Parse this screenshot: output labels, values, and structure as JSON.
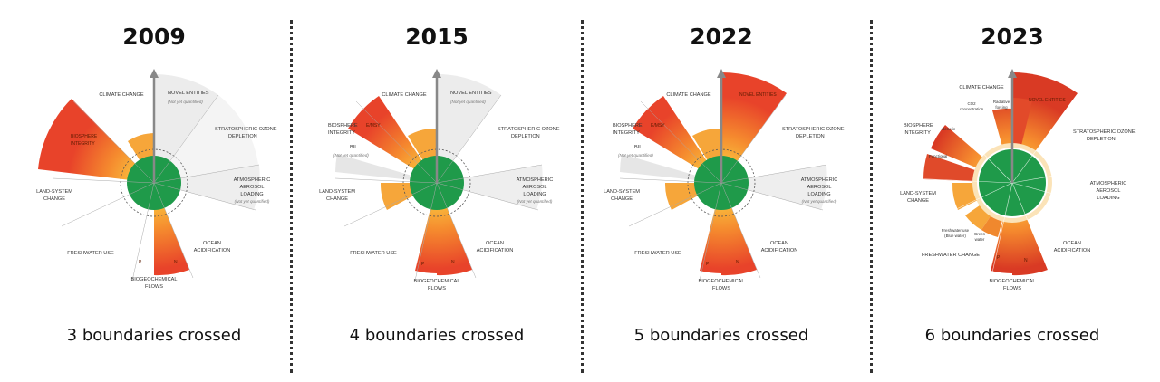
{
  "panels": [
    {
      "year": "2009",
      "caption": "3 boundaries crossed",
      "labels": {
        "climate": "CLIMATE CHANGE",
        "novel": "NOVEL ENTITIES",
        "novel_sub": "(Not yet quantified)",
        "ozone_1": "STRATOSPHERIC OZONE",
        "ozone_2": "DEPLETION",
        "aerosol_1": "ATMOSPHERIC",
        "aerosol_2": "AEROSOL",
        "aerosol_3": "LOADING",
        "aerosol_sub": "(Not yet quantified)",
        "ocean_1": "OCEAN",
        "ocean_2": "ACIDIFICATION",
        "bio_1": "BIOGEOCHEMICAL",
        "bio_2": "FLOWS",
        "p": "P",
        "n": "N",
        "fresh": "FRESHWATER USE",
        "land_1": "LAND-SYSTEM",
        "land_2": "CHANGE",
        "biosphere_1": "BIOSPHERE",
        "biosphere_2": "INTEGRITY"
      }
    },
    {
      "year": "2015",
      "caption": "4 boundaries crossed",
      "labels": {
        "climate": "CLIMATE CHANGE",
        "novel": "NOVEL ENTITIES",
        "novel_sub": "(Not yet quantified)",
        "ozone_1": "STRATOSPHERIC OZONE",
        "ozone_2": "DEPLETION",
        "aerosol_1": "ATMOSPHERIC",
        "aerosol_2": "AEROSOL",
        "aerosol_3": "LOADING",
        "aerosol_sub": "(Not yet quantified)",
        "ocean_1": "OCEAN",
        "ocean_2": "ACIDIFICATION",
        "bio_1": "BIOGEOCHEMICAL",
        "bio_2": "FLOWS",
        "p": "P",
        "n": "N",
        "fresh": "FRESHWATER USE",
        "land_1": "LAND-SYSTEM",
        "land_2": "CHANGE",
        "biosphere_1": "BIOSPHERE",
        "biosphere_2": "INTEGRITY",
        "emsy": "E/MSY",
        "bii": "BII",
        "bii_sub": "(Not yet quantified)"
      }
    },
    {
      "year": "2022",
      "caption": "5 boundaries crossed",
      "labels": {
        "climate": "CLIMATE CHANGE",
        "novel": "NOVEL ENTITIES",
        "ozone_1": "STRATOSPHERIC OZONE",
        "ozone_2": "DEPLETION",
        "aerosol_1": "ATMOSPHERIC",
        "aerosol_2": "AEROSOL",
        "aerosol_3": "LOADING",
        "aerosol_sub": "(Not yet quantified)",
        "ocean_1": "OCEAN",
        "ocean_2": "ACIDIFICATION",
        "bio_1": "BIOGEOCHEMICAL",
        "bio_2": "FLOWS",
        "p": "P",
        "n": "N",
        "fresh": "FRESHWATER USE",
        "land_1": "LAND-SYSTEM",
        "land_2": "CHANGE",
        "biosphere_1": "BIOSPHERE",
        "biosphere_2": "INTEGRITY",
        "emsy": "E/MSY",
        "bii": "BII",
        "bii_sub": "(Not yet quantified)"
      }
    },
    {
      "year": "2023",
      "caption": "6 boundaries crossed",
      "labels": {
        "climate": "CLIMATE CHANGE",
        "novel": "NOVEL ENTITIES",
        "ozone_1": "STRATOSPHERIC OZONE",
        "ozone_2": "DEPLETION",
        "aerosol_1": "ATMOSPHERIC",
        "aerosol_2": "AEROSOL",
        "aerosol_3": "LOADING",
        "ocean_1": "OCEAN",
        "ocean_2": "ACIDIFICATION",
        "bio_1": "BIOGEOCHEMICAL",
        "bio_2": "FLOWS",
        "p": "P",
        "n": "N",
        "fresh": "FRESHWATER CHANGE",
        "land_1": "LAND-SYSTEM",
        "land_2": "CHANGE",
        "biosphere_1": "BIOSPHERE",
        "biosphere_2": "INTEGRITY",
        "genetic": "Genetic",
        "functional": "Functional",
        "co2_1": "CO2",
        "co2_2": "concentration",
        "rf_1": "Radiative",
        "rf_2": "forcing",
        "blue_1": "Freshwater use",
        "blue_2": "(Blue water)",
        "green_1": "Green",
        "green_2": "water"
      }
    }
  ],
  "colors": {
    "safe": "#1f9a4a",
    "crossed": "#f26a2b",
    "zone": "#f7a233",
    "grey": "#d9d9d9",
    "text": "#111111"
  },
  "icons": {
    "axis_arrow": "arrow-up-icon"
  }
}
